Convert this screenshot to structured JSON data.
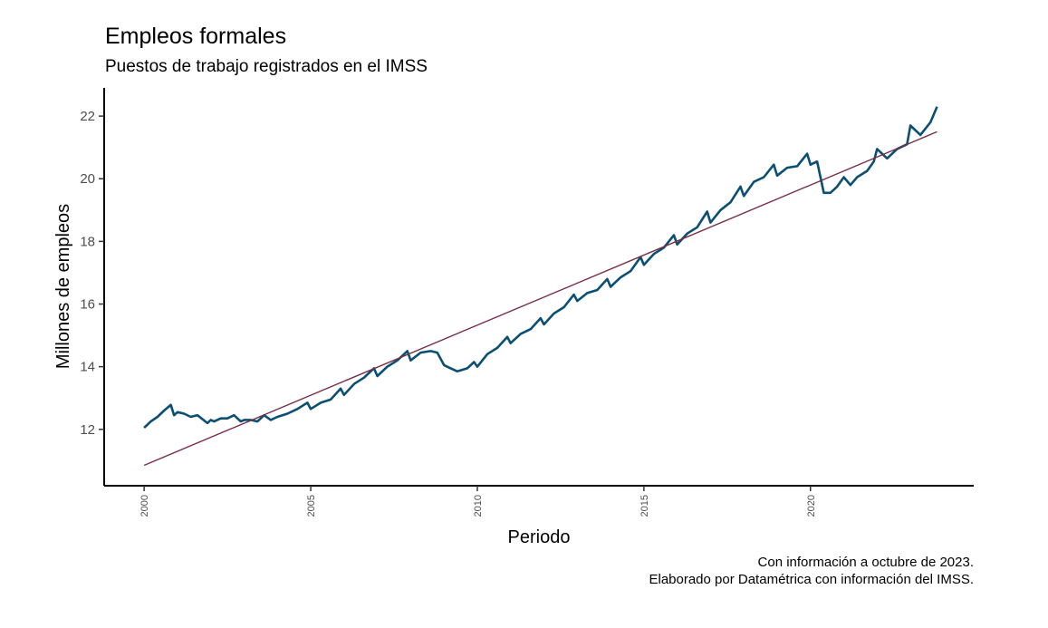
{
  "title": "Empleos formales",
  "subtitle": "Puestos de trabajo registrados en el IMSS",
  "caption_lines": [
    "Con información a octubre de 2023.",
    "Elaborado por Datamétrica con información del IMSS."
  ],
  "colors": {
    "series": "#0b4f73",
    "trend": "#7a2f45",
    "axis": "#000000"
  },
  "chart_data": {
    "type": "line",
    "xlabel": "Periodo",
    "ylabel": "Millones de empleos",
    "xlim": [
      1998.8,
      2024.9
    ],
    "ylim": [
      10.2,
      22.9
    ],
    "x_ticks": [
      2000,
      2005,
      2010,
      2015,
      2020
    ],
    "x_tick_labels": [
      "2000",
      "2005",
      "2010",
      "2015",
      "2020"
    ],
    "y_ticks": [
      12,
      14,
      16,
      18,
      20,
      22
    ],
    "y_tick_labels": [
      "12",
      "14",
      "16",
      "18",
      "20",
      "22"
    ],
    "grid": false,
    "series": [
      {
        "x": [
          2000.0,
          2000.2,
          2000.4,
          2000.6,
          2000.8,
          2000.9,
          2001.0,
          2001.2,
          2001.4,
          2001.6,
          2001.9,
          2002.0,
          2002.1,
          2002.3,
          2002.5,
          2002.7,
          2002.9,
          2003.0,
          2003.2,
          2003.4,
          2003.6,
          2003.8,
          2004.0,
          2004.3,
          2004.6,
          2004.9,
          2005.0,
          2005.3,
          2005.6,
          2005.9,
          2006.0,
          2006.3,
          2006.6,
          2006.9,
          2007.0,
          2007.3,
          2007.6,
          2007.9,
          2008.0,
          2008.3,
          2008.6,
          2008.8,
          2009.0,
          2009.2,
          2009.4,
          2009.7,
          2009.9,
          2010.0,
          2010.3,
          2010.6,
          2010.9,
          2011.0,
          2011.3,
          2011.6,
          2011.9,
          2012.0,
          2012.3,
          2012.6,
          2012.9,
          2013.0,
          2013.3,
          2013.6,
          2013.9,
          2014.0,
          2014.3,
          2014.6,
          2014.9,
          2015.0,
          2015.3,
          2015.6,
          2015.9,
          2016.0,
          2016.3,
          2016.6,
          2016.9,
          2017.0,
          2017.3,
          2017.6,
          2017.9,
          2018.0,
          2018.3,
          2018.6,
          2018.9,
          2019.0,
          2019.3,
          2019.6,
          2019.9,
          2020.0,
          2020.2,
          2020.4,
          2020.6,
          2020.8,
          2021.0,
          2021.2,
          2021.4,
          2021.7,
          2021.9,
          2022.0,
          2022.3,
          2022.6,
          2022.9,
          2023.0,
          2023.3,
          2023.6,
          2023.8
        ],
        "values": [
          12.05,
          12.25,
          12.4,
          12.6,
          12.78,
          12.45,
          12.55,
          12.5,
          12.4,
          12.45,
          12.2,
          12.3,
          12.25,
          12.35,
          12.35,
          12.45,
          12.25,
          12.3,
          12.3,
          12.25,
          12.45,
          12.3,
          12.4,
          12.5,
          12.65,
          12.85,
          12.65,
          12.85,
          12.95,
          13.3,
          13.1,
          13.45,
          13.65,
          13.95,
          13.7,
          14.0,
          14.2,
          14.5,
          14.2,
          14.45,
          14.5,
          14.45,
          14.05,
          13.95,
          13.85,
          13.95,
          14.15,
          14.0,
          14.4,
          14.6,
          14.95,
          14.75,
          15.05,
          15.2,
          15.55,
          15.35,
          15.7,
          15.9,
          16.3,
          16.1,
          16.35,
          16.45,
          16.8,
          16.55,
          16.85,
          17.05,
          17.5,
          17.25,
          17.6,
          17.8,
          18.2,
          17.9,
          18.25,
          18.45,
          18.95,
          18.6,
          19.0,
          19.25,
          19.75,
          19.45,
          19.9,
          20.05,
          20.45,
          20.1,
          20.35,
          20.4,
          20.8,
          20.45,
          20.55,
          19.55,
          19.55,
          19.75,
          20.05,
          19.8,
          20.05,
          20.25,
          20.55,
          20.95,
          20.65,
          20.95,
          21.1,
          21.7,
          21.4,
          21.8,
          22.3
        ]
      },
      {
        "x": [
          2000.0,
          2023.8
        ],
        "values": [
          10.85,
          21.5
        ]
      }
    ]
  }
}
